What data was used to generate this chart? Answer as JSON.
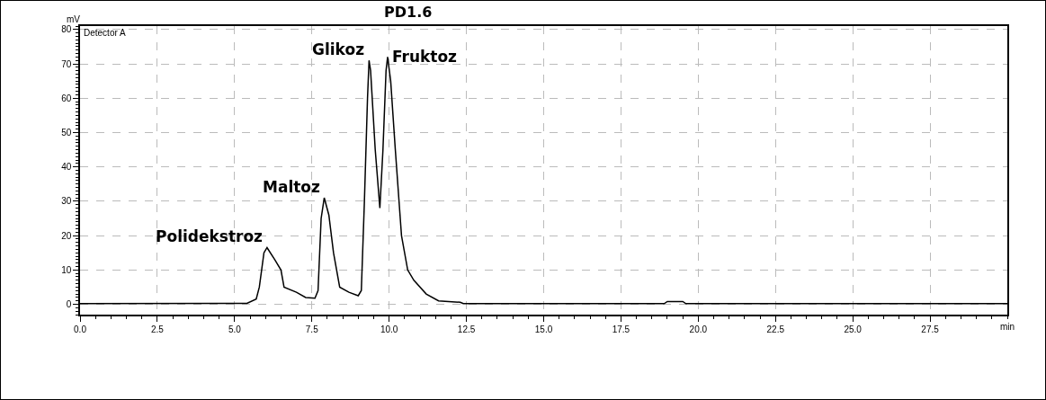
{
  "chart_data": {
    "type": "line",
    "title": "PD1.6",
    "xlabel": "min",
    "ylabel": "mV",
    "annotations": [
      "Detector A",
      {
        "text": "Polidekstroz",
        "x": 6.05,
        "y": 16.5
      },
      {
        "text": "Maltoz",
        "x": 7.9,
        "y": 31
      },
      {
        "text": "Glikoz",
        "x": 9.35,
        "y": 71
      },
      {
        "text": "Fruktoz",
        "x": 9.95,
        "y": 72
      }
    ],
    "x": [
      0,
      5.4,
      5.7,
      5.8,
      5.95,
      6.05,
      6.3,
      6.5,
      6.6,
      7.0,
      7.3,
      7.6,
      7.7,
      7.8,
      7.9,
      8.05,
      8.2,
      8.4,
      8.7,
      9.0,
      9.1,
      9.2,
      9.3,
      9.35,
      9.4,
      9.55,
      9.7,
      9.8,
      9.9,
      9.95,
      10.05,
      10.2,
      10.4,
      10.6,
      10.8,
      11.2,
      11.6,
      12.3,
      12.4,
      18.9,
      19.0,
      19.5,
      19.6,
      30
    ],
    "series": [
      {
        "color": "#000000",
        "values": [
          0.2,
          0.3,
          1.5,
          5,
          15,
          16.5,
          13,
          10,
          5,
          3.5,
          2,
          1.8,
          4,
          25,
          31,
          26,
          15,
          5,
          3.5,
          2.5,
          4,
          30,
          60,
          71,
          68,
          45,
          28,
          45,
          68,
          72,
          65,
          45,
          20,
          10,
          7,
          3,
          1,
          0.6,
          0.2,
          0.2,
          0.8,
          0.8,
          0.2,
          0.2
        ]
      }
    ],
    "xlim": [
      0,
      30
    ],
    "xticks": [
      {
        "value": 0,
        "label": "0.0"
      },
      {
        "value": 2.5,
        "label": "2.5"
      },
      {
        "value": 5,
        "label": "5.0"
      },
      {
        "value": 7.5,
        "label": "7.5"
      },
      {
        "value": 10,
        "label": "10.0"
      },
      {
        "value": 12.5,
        "label": "12.5"
      },
      {
        "value": 15,
        "label": "15.0"
      },
      {
        "value": 17.5,
        "label": "17.5"
      },
      {
        "value": 20,
        "label": "20.0"
      },
      {
        "value": 22.5,
        "label": "22.5"
      },
      {
        "value": 25,
        "label": "25.0"
      },
      {
        "value": 27.5,
        "label": "27.5"
      }
    ],
    "ylim": [
      -3,
      81
    ],
    "yticks": [
      0,
      10,
      20,
      30,
      40,
      50,
      60,
      70,
      80
    ],
    "grid": true,
    "marker": "none",
    "line_style": "solid"
  }
}
